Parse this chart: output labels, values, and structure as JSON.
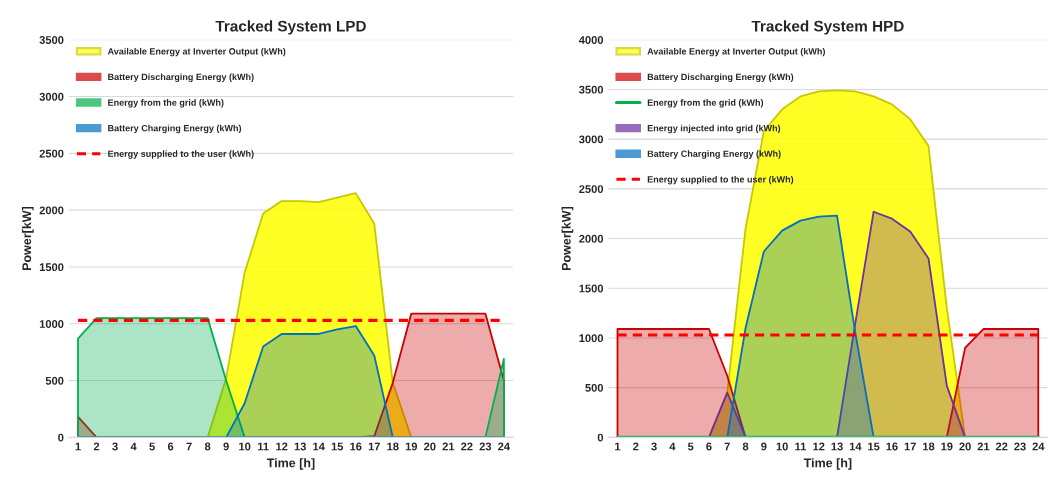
{
  "chart_data": [
    {
      "type": "area",
      "title": "Tracked System LPD",
      "xlabel": "Time [h]",
      "ylabel": "Power[kW]",
      "categories": [
        "1",
        "2",
        "3",
        "4",
        "5",
        "6",
        "7",
        "8",
        "9",
        "10",
        "11",
        "12",
        "13",
        "14",
        "15",
        "16",
        "17",
        "18",
        "19",
        "20",
        "21",
        "22",
        "23",
        "24"
      ],
      "ylim": [
        0,
        3500
      ],
      "yticks": [
        0,
        500,
        1000,
        1500,
        2000,
        2500,
        3000,
        3500
      ],
      "grid": "y",
      "legend": "top left",
      "series": [
        {
          "name": "Available Energy at Inverter Output (kWh)",
          "color": "#ffff00",
          "values": [
            0,
            0,
            0,
            0,
            0,
            0,
            0,
            0,
            520,
            1450,
            1970,
            2080,
            2080,
            2070,
            2110,
            2150,
            1880,
            480,
            0,
            0,
            0,
            0,
            0,
            0
          ]
        },
        {
          "name": "Battery Discharging Energy (kWh)",
          "color": "#cc0000",
          "values": [
            180,
            0,
            0,
            0,
            0,
            0,
            0,
            0,
            0,
            0,
            0,
            0,
            0,
            0,
            0,
            0,
            10,
            480,
            1090,
            1090,
            1090,
            1090,
            1090,
            500
          ]
        },
        {
          "name": "Energy from the grid (kWh)",
          "color": "#00b050",
          "values": [
            870,
            1050,
            1050,
            1050,
            1050,
            1050,
            1050,
            1050,
            500,
            0,
            0,
            0,
            0,
            0,
            0,
            0,
            0,
            0,
            0,
            0,
            0,
            0,
            0,
            690
          ]
        },
        {
          "name": "Battery Charging Energy (kWh)",
          "color": "#0070c0",
          "values": [
            0,
            0,
            0,
            0,
            0,
            0,
            0,
            0,
            0,
            300,
            800,
            910,
            910,
            910,
            950,
            980,
            720,
            0,
            0,
            0,
            0,
            0,
            0,
            0
          ]
        },
        {
          "name": "Energy supplied to the user (kWh)",
          "type": "line",
          "line_style": "dashed",
          "color": "#ff0000",
          "values": [
            1030,
            1030,
            1030,
            1030,
            1030,
            1030,
            1030,
            1030,
            1030,
            1030,
            1030,
            1030,
            1030,
            1030,
            1030,
            1030,
            1030,
            1030,
            1030,
            1030,
            1030,
            1030,
            1030,
            1030
          ]
        }
      ]
    },
    {
      "type": "area",
      "title": "Tracked System HPD",
      "xlabel": "Time [h]",
      "ylabel": "Power[kW]",
      "categories": [
        "1",
        "2",
        "3",
        "4",
        "5",
        "6",
        "7",
        "8",
        "9",
        "10",
        "11",
        "12",
        "13",
        "14",
        "15",
        "16",
        "17",
        "18",
        "19",
        "20",
        "21",
        "22",
        "23",
        "24"
      ],
      "ylim": [
        0,
        4000
      ],
      "yticks": [
        0,
        500,
        1000,
        1500,
        2000,
        2500,
        3000,
        3500,
        4000
      ],
      "grid": "y",
      "legend": "top left",
      "series": [
        {
          "name": "Available Energy at Inverter Output (kWh)",
          "color": "#ffff00",
          "values": [
            0,
            0,
            0,
            0,
            0,
            0,
            450,
            2100,
            3080,
            3300,
            3430,
            3480,
            3490,
            3480,
            3430,
            3350,
            3200,
            2930,
            1300,
            0,
            0,
            0,
            0,
            0
          ]
        },
        {
          "name": "Battery Discharging Energy (kWh)",
          "color": "#cc0000",
          "values": [
            1090,
            1090,
            1090,
            1090,
            1090,
            1090,
            620,
            0,
            0,
            0,
            0,
            0,
            0,
            0,
            0,
            0,
            0,
            0,
            0,
            900,
            1090,
            1090,
            1090,
            1090
          ]
        },
        {
          "name": "Energy from the grid (kWh)",
          "type": "line",
          "color": "#00b050",
          "values": [
            0,
            0,
            0,
            0,
            0,
            0,
            0,
            0,
            0,
            0,
            0,
            0,
            0,
            0,
            0,
            0,
            0,
            0,
            0,
            0,
            0,
            0,
            0,
            0
          ]
        },
        {
          "name": "Energy injected into grid (kWh)",
          "color": "#7030a0",
          "values": [
            0,
            0,
            0,
            0,
            0,
            0,
            450,
            0,
            0,
            0,
            0,
            0,
            0,
            1150,
            2270,
            2200,
            2070,
            1800,
            520,
            0,
            0,
            0,
            0,
            0
          ]
        },
        {
          "name": "Battery Charging Energy (kWh)",
          "color": "#0070c0",
          "values": [
            0,
            0,
            0,
            0,
            0,
            0,
            0,
            1100,
            1870,
            2080,
            2180,
            2220,
            2230,
            1050,
            0,
            0,
            0,
            0,
            0,
            0,
            0,
            0,
            0,
            0
          ]
        },
        {
          "name": "Energy supplied to the user (kWh)",
          "type": "line",
          "line_style": "dashed",
          "color": "#ff0000",
          "values": [
            1030,
            1030,
            1030,
            1030,
            1030,
            1030,
            1030,
            1030,
            1030,
            1030,
            1030,
            1030,
            1030,
            1030,
            1030,
            1030,
            1030,
            1030,
            1030,
            1030,
            1030,
            1030,
            1030,
            1030
          ]
        }
      ]
    }
  ]
}
